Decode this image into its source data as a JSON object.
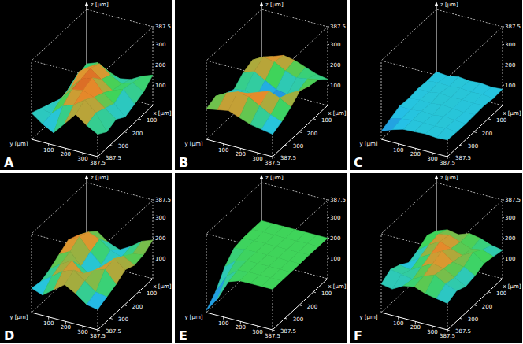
{
  "chart_data": [
    {
      "type": "surface",
      "label": "A",
      "x_label": "x [µm]",
      "y_label": "y [µm]",
      "z_label": "z [µm]",
      "xlim": [
        0,
        387.5
      ],
      "ylim": [
        0,
        387.5
      ],
      "zlim": [
        0,
        387.5
      ],
      "xticks": [
        100,
        200,
        300,
        387.5
      ],
      "yticks": [
        100,
        200,
        300,
        387.5
      ],
      "zticks": [
        100,
        200,
        300,
        387.5
      ],
      "grid_x": [
        0,
        64.58,
        129.17,
        193.75,
        258.33,
        322.92,
        387.5
      ],
      "grid_y": [
        0,
        64.58,
        129.17,
        193.75,
        258.33,
        322.92,
        387.5
      ],
      "color_range": [
        50,
        230
      ],
      "z": [
        [
          120,
          140,
          110,
          90,
          100,
          130,
          150
        ],
        [
          100,
          160,
          190,
          150,
          120,
          140,
          110
        ],
        [
          80,
          180,
          210,
          170,
          130,
          150,
          90
        ],
        [
          60,
          140,
          200,
          220,
          160,
          120,
          70
        ],
        [
          90,
          130,
          190,
          200,
          180,
          140,
          100
        ],
        [
          110,
          100,
          150,
          170,
          210,
          160,
          80
        ],
        [
          130,
          90,
          60,
          120,
          180,
          140,
          110
        ]
      ]
    },
    {
      "type": "surface",
      "label": "B",
      "x_label": "x [µm]",
      "y_label": "y [µm]",
      "z_label": "z [µm]",
      "xlim": [
        0,
        387.5
      ],
      "ylim": [
        0,
        387.5
      ],
      "zlim": [
        0,
        387.5
      ],
      "xticks": [
        100,
        200,
        300,
        387.5
      ],
      "yticks": [
        100,
        200,
        300,
        387.5
      ],
      "zticks": [
        100,
        200,
        300,
        387.5
      ],
      "grid_x": [
        0,
        64.58,
        129.17,
        193.75,
        258.33,
        322.92,
        387.5
      ],
      "grid_y": [
        0,
        64.58,
        129.17,
        193.75,
        258.33,
        322.92,
        387.5
      ],
      "color_range": [
        90,
        230
      ],
      "z": [
        [
          150,
          170,
          190,
          180,
          160,
          140,
          130
        ],
        [
          180,
          210,
          200,
          170,
          150,
          160,
          170
        ],
        [
          160,
          180,
          150,
          120,
          110,
          140,
          180
        ],
        [
          120,
          130,
          110,
          100,
          130,
          170,
          200
        ],
        [
          140,
          150,
          170,
          190,
          210,
          190,
          160
        ],
        [
          170,
          200,
          220,
          210,
          180,
          150,
          130
        ],
        [
          150,
          160,
          170,
          150,
          130,
          120,
          110
        ]
      ]
    },
    {
      "type": "surface",
      "label": "C",
      "x_label": "x [µm]",
      "y_label": "y [µm]",
      "z_label": "z [µm]",
      "xlim": [
        0,
        387.5
      ],
      "ylim": [
        0,
        387.5
      ],
      "zlim": [
        0,
        387.5
      ],
      "xticks": [
        100,
        200,
        300,
        387.5
      ],
      "yticks": [
        100,
        200,
        300,
        387.5
      ],
      "zticks": [
        100,
        200,
        300,
        387.5
      ],
      "grid_x": [
        0,
        64.58,
        129.17,
        193.75,
        258.33,
        322.92,
        387.5
      ],
      "grid_y": [
        0,
        64.58,
        129.17,
        193.75,
        258.33,
        322.92,
        387.5
      ],
      "color_range": [
        0,
        300
      ],
      "z": [
        [
          80,
          75,
          85,
          78,
          82,
          76,
          80
        ],
        [
          78,
          84,
          80,
          86,
          79,
          83,
          77
        ],
        [
          82,
          79,
          88,
          81,
          85,
          80,
          84
        ],
        [
          76,
          83,
          80,
          87,
          82,
          78,
          81
        ],
        [
          80,
          77,
          84,
          79,
          86,
          82,
          78
        ],
        [
          60,
          74,
          81,
          83,
          80,
          85,
          79
        ],
        [
          40,
          62,
          78,
          80,
          84,
          79,
          82
        ]
      ]
    },
    {
      "type": "surface",
      "label": "D",
      "x_label": "x [µm]",
      "y_label": "y [µm]",
      "z_label": "z [µm]",
      "xlim": [
        0,
        387.5
      ],
      "ylim": [
        0,
        387.5
      ],
      "zlim": [
        0,
        387.5
      ],
      "xticks": [
        100,
        200,
        300,
        387.5
      ],
      "yticks": [
        100,
        200,
        300,
        387.5
      ],
      "zticks": [
        100,
        200,
        300,
        387.5
      ],
      "grid_x": [
        0,
        64.58,
        129.17,
        193.75,
        258.33,
        322.92,
        387.5
      ],
      "grid_y": [
        0,
        64.58,
        129.17,
        193.75,
        258.33,
        322.92,
        387.5
      ],
      "color_range": [
        80,
        230
      ],
      "z": [
        [
          140,
          160,
          120,
          100,
          130,
          170,
          190
        ],
        [
          170,
          200,
          180,
          140,
          120,
          150,
          160
        ],
        [
          190,
          220,
          160,
          110,
          140,
          180,
          150
        ],
        [
          160,
          190,
          130,
          90,
          160,
          210,
          170
        ],
        [
          130,
          170,
          200,
          150,
          180,
          200,
          140
        ],
        [
          110,
          150,
          190,
          210,
          170,
          130,
          120
        ],
        [
          120,
          100,
          140,
          180,
          150,
          110,
          100
        ]
      ]
    },
    {
      "type": "surface",
      "label": "E",
      "x_label": "x [µm]",
      "y_label": "y [µm]",
      "z_label": "z [µm]",
      "xlim": [
        0,
        387.5
      ],
      "ylim": [
        0,
        387.5
      ],
      "zlim": [
        0,
        387.5
      ],
      "xticks": [
        100,
        200,
        300,
        387.5
      ],
      "yticks": [
        100,
        200,
        300,
        387.5
      ],
      "zticks": [
        100,
        200,
        300,
        387.5
      ],
      "grid_x": [
        0,
        64.58,
        129.17,
        193.75,
        258.33,
        322.92,
        387.5
      ],
      "grid_y": [
        0,
        64.58,
        129.17,
        193.75,
        258.33,
        322.92,
        387.5
      ],
      "color_range": [
        0,
        400
      ],
      "z": [
        [
          200,
          200,
          200,
          200,
          200,
          200,
          200
        ],
        [
          200,
          201,
          200,
          199,
          200,
          201,
          200
        ],
        [
          199,
          200,
          201,
          200,
          200,
          200,
          201
        ],
        [
          190,
          199,
          200,
          201,
          200,
          199,
          200
        ],
        [
          140,
          185,
          200,
          200,
          201,
          200,
          200
        ],
        [
          60,
          150,
          195,
          200,
          200,
          201,
          200
        ],
        [
          10,
          80,
          180,
          199,
          200,
          200,
          200
        ]
      ]
    },
    {
      "type": "surface",
      "label": "F",
      "x_label": "x [µm]",
      "y_label": "y [µm]",
      "z_label": "z [µm]",
      "xlim": [
        0,
        387.5
      ],
      "ylim": [
        0,
        387.5
      ],
      "zlim": [
        0,
        387.5
      ],
      "xticks": [
        100,
        200,
        300,
        387.5
      ],
      "yticks": [
        100,
        200,
        300,
        387.5
      ],
      "zticks": [
        100,
        200,
        300,
        387.5
      ],
      "grid_x": [
        0,
        64.58,
        129.17,
        193.75,
        258.33,
        322.92,
        387.5
      ],
      "grid_y": [
        0,
        64.58,
        129.17,
        193.75,
        258.33,
        322.92,
        387.5
      ],
      "color_range": [
        110,
        230
      ],
      "z": [
        [
          150,
          170,
          160,
          180,
          170,
          150,
          140
        ],
        [
          170,
          190,
          200,
          180,
          160,
          170,
          150
        ],
        [
          140,
          180,
          210,
          190,
          170,
          200,
          160
        ],
        [
          120,
          160,
          190,
          220,
          180,
          170,
          140
        ],
        [
          150,
          140,
          170,
          200,
          190,
          160,
          130
        ],
        [
          170,
          160,
          150,
          180,
          200,
          170,
          150
        ],
        [
          140,
          130,
          160,
          170,
          150,
          140,
          130
        ]
      ]
    }
  ]
}
